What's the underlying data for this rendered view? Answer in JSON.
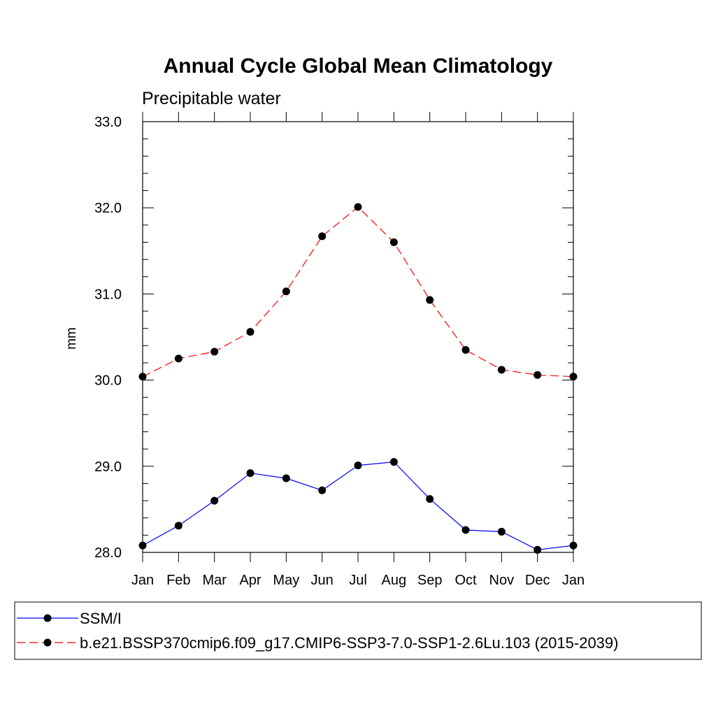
{
  "chart_data": {
    "type": "line",
    "title": "Annual Cycle Global Mean Climatology",
    "subtitle": "Precipitable water",
    "xlabel": "",
    "ylabel": "mm",
    "categories": [
      "Jan",
      "Feb",
      "Mar",
      "Apr",
      "May",
      "Jun",
      "Jul",
      "Aug",
      "Sep",
      "Oct",
      "Nov",
      "Dec",
      "Jan"
    ],
    "ylim": [
      28.0,
      33.0
    ],
    "yticks": [
      "28.0",
      "29.0",
      "30.0",
      "31.0",
      "32.0",
      "33.0"
    ],
    "grid": false,
    "legend_position": "bottom",
    "series": [
      {
        "name": "SSM/I",
        "color": "#0000ff",
        "line_style": "solid",
        "marker": "filled-circle",
        "values": [
          28.08,
          28.31,
          28.6,
          28.92,
          28.86,
          28.72,
          29.01,
          29.05,
          28.62,
          28.26,
          28.24,
          28.03,
          28.08
        ]
      },
      {
        "name": "b.e21.BSSP370cmip6.f09_g17.CMIP6-SSP3-7.0-SSP1-2.6Lu.103 (2015-2039)",
        "color": "#ff0000",
        "line_style": "dashed",
        "marker": "filled-circle",
        "values": [
          30.04,
          30.25,
          30.33,
          30.56,
          31.03,
          31.67,
          32.01,
          31.6,
          30.93,
          30.35,
          30.12,
          30.06,
          30.04
        ]
      }
    ]
  }
}
